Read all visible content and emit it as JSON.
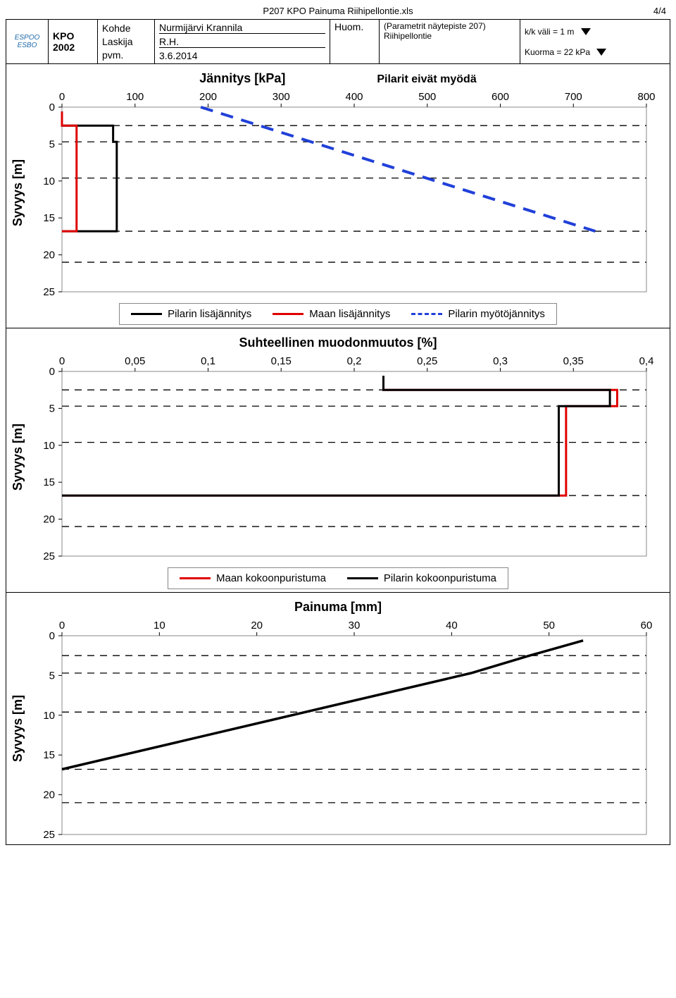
{
  "page_header": {
    "filename": "P207 KPO Painuma Riihipellontie.xls",
    "page": "4/4"
  },
  "info": {
    "logo_text": "ESPOO\nESBO",
    "kpo_line1": "KPO",
    "kpo_line2": "2002",
    "label_kohde": "Kohde",
    "label_laskija": "Laskija",
    "label_pvm": "pvm.",
    "value_kohde": "Nurmijärvi Krannila",
    "value_laskija": "R.H.",
    "value_pvm": "3.6.2014",
    "huom_label": "Huom.",
    "param_line1": "(Parametrit näytepiste 207)",
    "param_line2": "Riihipellontie",
    "kk_label": "k/k väli = 1 m",
    "kuorma_label": "Kuorma = 22 kPa"
  },
  "charts": {
    "ylabel": "Syvyys [m]",
    "chart1": {
      "title": "Jännitys [kPa]",
      "subtitle": "Pilarit eivät myödä",
      "x": {
        "min": 0,
        "max": 800,
        "step": 100
      },
      "y": {
        "min": 0,
        "max": 25,
        "step": 5
      },
      "grid_y": [
        2.5,
        4.7,
        9.6,
        16.8,
        21.0
      ],
      "series": {
        "pilarin_lisa": {
          "label": "Pilarin lisäjännitys",
          "color": "#000000",
          "dash": "",
          "width": 3,
          "points": [
            [
              0,
              0.6
            ],
            [
              0,
              2.5
            ],
            [
              70,
              2.5
            ],
            [
              70,
              4.7
            ],
            [
              75,
              4.7
            ],
            [
              75,
              16.8
            ],
            [
              0,
              16.8
            ]
          ]
        },
        "maan_lisa": {
          "label": "Maan lisäjännitys",
          "color": "#e00000",
          "dash": "",
          "width": 3,
          "points": [
            [
              0,
              0.6
            ],
            [
              0,
              2.5
            ],
            [
              20,
              2.5
            ],
            [
              20,
              16.8
            ],
            [
              0,
              16.8
            ]
          ]
        },
        "myoto": {
          "label": "Pilarin myötöjännitys",
          "color": "#2040d8",
          "dash": "18 12",
          "width": 4,
          "points": [
            [
              190,
              0
            ],
            [
              730,
              16.8
            ]
          ]
        }
      }
    },
    "chart2": {
      "title": "Suhteellinen muodonmuutos [%]",
      "x": {
        "min": 0,
        "max": 0.4,
        "step": 0.05
      },
      "y": {
        "min": 0,
        "max": 25,
        "step": 5
      },
      "grid_y": [
        2.5,
        4.7,
        9.6,
        16.8,
        21.0
      ],
      "series": {
        "maan_kokoon": {
          "label": "Maan kokoonpuristuma",
          "color": "#e00000",
          "dash": "",
          "width": 3,
          "points": [
            [
              0.22,
              0.6
            ],
            [
              0.22,
              2.5
            ],
            [
              0.38,
              2.5
            ],
            [
              0.38,
              4.7
            ],
            [
              0.345,
              4.7
            ],
            [
              0.345,
              16.8
            ],
            [
              0,
              16.8
            ]
          ]
        },
        "pilarin_kokoon": {
          "label": "Pilarin kokoonpuristuma",
          "color": "#000000",
          "dash": "",
          "width": 3,
          "points": [
            [
              0.22,
              0.6
            ],
            [
              0.22,
              2.5
            ],
            [
              0.375,
              2.5
            ],
            [
              0.375,
              4.7
            ],
            [
              0.34,
              4.7
            ],
            [
              0.34,
              16.8
            ],
            [
              0,
              16.8
            ]
          ]
        }
      }
    },
    "chart3": {
      "title": "Painuma [mm]",
      "x": {
        "min": 0,
        "max": 60,
        "step": 10
      },
      "y": {
        "min": 0,
        "max": 25,
        "step": 5
      },
      "grid_y": [
        2.5,
        4.7,
        9.6,
        16.8,
        21.0
      ],
      "series": {
        "painuma": {
          "color": "#000000",
          "dash": "",
          "width": 3.5,
          "points": [
            [
              0,
              16.8
            ],
            [
              42,
              4.7
            ],
            [
              48,
              2.5
            ],
            [
              53.5,
              0.6
            ]
          ]
        }
      }
    }
  },
  "colors": {
    "grid_dash": "#000000",
    "axis": "#000000",
    "bg": "#ffffff"
  }
}
